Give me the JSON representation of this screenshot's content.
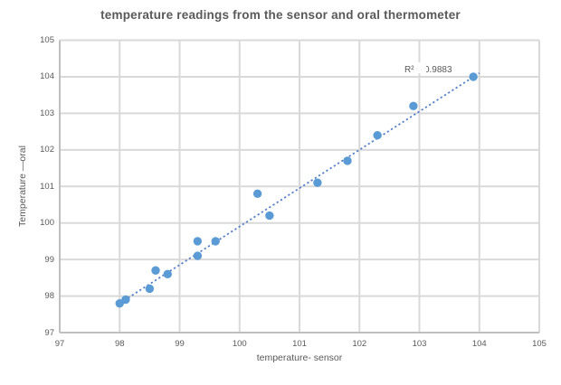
{
  "chart_data": {
    "type": "scatter",
    "title": "temperature readings from the sensor and oral thermometer",
    "xlabel": "temperature- sensor",
    "ylabel": "Temperature —oral",
    "xlim": [
      97,
      105
    ],
    "ylim": [
      97,
      105
    ],
    "x_ticks": [
      97,
      98,
      99,
      100,
      101,
      102,
      103,
      104,
      105
    ],
    "y_ticks": [
      97,
      98,
      99,
      100,
      101,
      102,
      103,
      104,
      105
    ],
    "grid": true,
    "legend": "none",
    "points": [
      [
        98.0,
        97.8
      ],
      [
        98.1,
        97.9
      ],
      [
        98.5,
        98.2
      ],
      [
        98.6,
        98.7
      ],
      [
        98.8,
        98.6
      ],
      [
        99.3,
        99.1
      ],
      [
        99.3,
        99.5
      ],
      [
        99.6,
        99.5
      ],
      [
        100.3,
        100.8
      ],
      [
        100.5,
        100.2
      ],
      [
        101.3,
        101.1
      ],
      [
        101.8,
        101.7
      ],
      [
        102.3,
        102.4
      ],
      [
        102.9,
        103.2
      ],
      [
        103.9,
        104.0
      ]
    ],
    "trendline": {
      "style": "dotted",
      "x1": 97.95,
      "y1": 97.75,
      "x2": 104.0,
      "y2": 104.1,
      "r_squared_label": "R² = 0.9883"
    },
    "colors": {
      "marker": "#5B9BD5",
      "trendline": "#4472C4",
      "gridline": "#D9D9D9",
      "axis_line": "#BFBFBF",
      "text": "#595959"
    }
  }
}
